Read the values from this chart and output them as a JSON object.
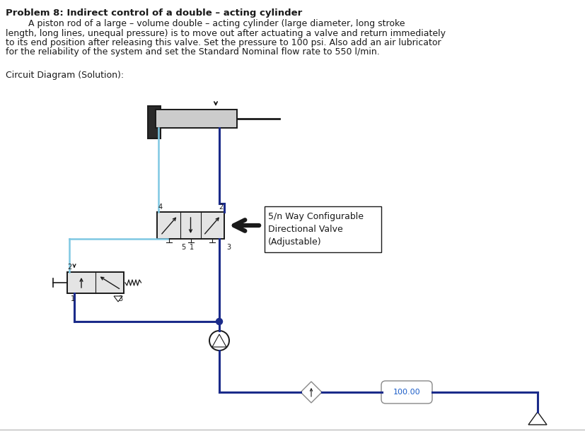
{
  "title": "Problem 8: Indirect control of a double – acting cylinder",
  "body_text": [
    "        A piston rod of a large – volume double – acting cylinder (large diameter, long stroke",
    "length, long lines, unequal pressure) is to move out after actuating a valve and return immediately",
    "to its end position after releasing this valve. Set the pressure to 100 psi. Also add an air lubricator",
    "for the reliability of the system and set the Standard Nominal flow rate to 550 l/min."
  ],
  "circuit_label": "Circuit Diagram (Solution):",
  "valve_label": [
    "5/n Way Configurable",
    "Directional Valve",
    "(Adjustable)"
  ],
  "pressure_label": "100.00",
  "dark_blue": "#1B2B8A",
  "light_blue": "#7EC8E3",
  "gray": "#888888",
  "black": "#1a1a1a",
  "white": "#ffffff"
}
